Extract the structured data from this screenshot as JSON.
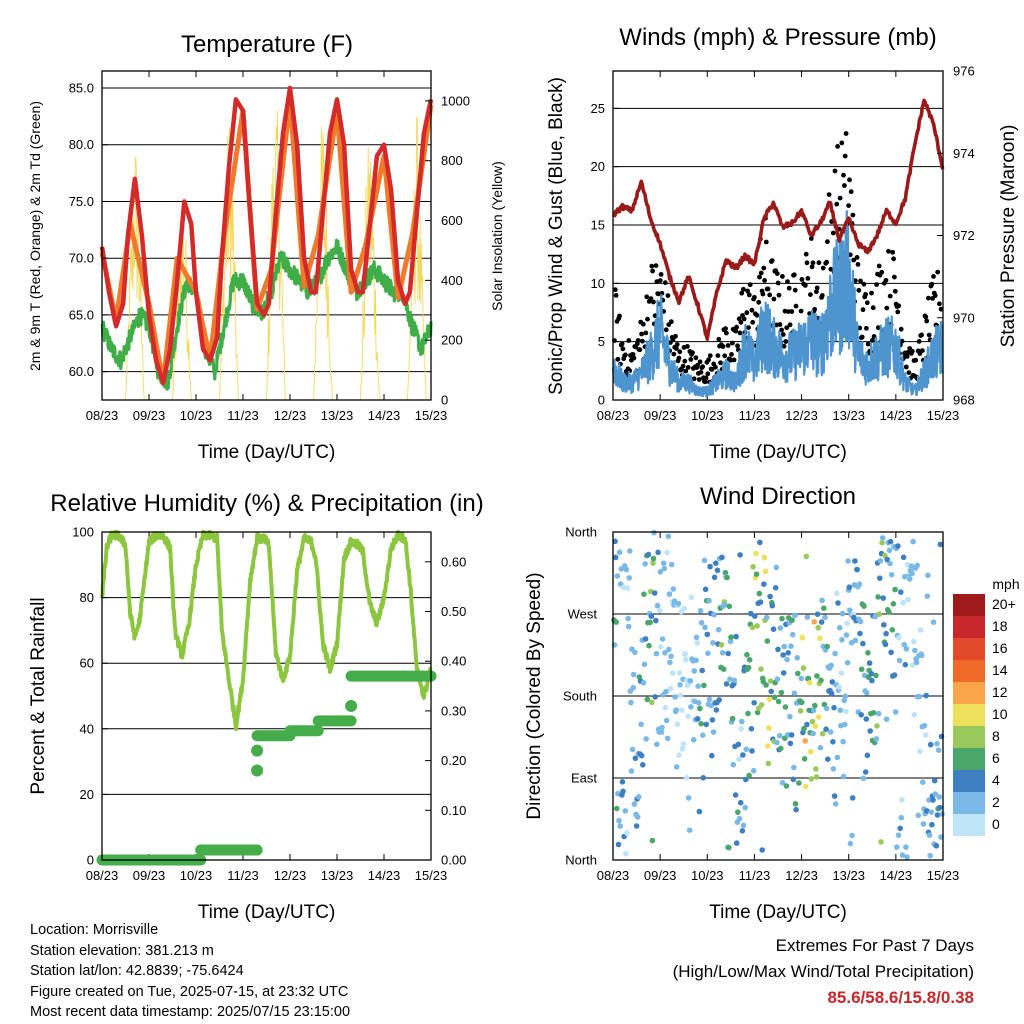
{
  "chart_data": [
    {
      "type": "line",
      "title": "Temperature (F)",
      "xlabel": "Time (Day/UTC)",
      "ylabel_left": "2m & 9m T (Red, Orange) & 2m Td (Green)",
      "ylabel_right": "Solar Insolation (Yellow)",
      "x_ticks": [
        "08/23",
        "09/23",
        "10/23",
        "11/23",
        "12/23",
        "13/23",
        "14/23",
        "15/23"
      ],
      "y_ticks_left": [
        "60.0",
        "65.0",
        "70.0",
        "75.0",
        "80.0",
        "85.0"
      ],
      "y_ticks_right": [
        "0",
        "200",
        "400",
        "600",
        "800",
        "1000"
      ],
      "ylim_left": [
        57.5,
        86.5
      ],
      "ylim_right": [
        0,
        1100
      ],
      "grid": true,
      "series": [
        {
          "name": "2m T",
          "color": "#d42a2a",
          "x": [
            0,
            0.15,
            0.3,
            0.45,
            0.55,
            0.7,
            0.85,
            1.0,
            1.15,
            1.3,
            1.45,
            1.6,
            1.75,
            1.9,
            2.0,
            2.15,
            2.3,
            2.45,
            2.55,
            2.7,
            2.85,
            3.0,
            3.15,
            3.3,
            3.45,
            3.55,
            3.7,
            3.85,
            4.0,
            4.15,
            4.3,
            4.45,
            4.55,
            4.7,
            4.85,
            5.0,
            5.15,
            5.3,
            5.45,
            5.55,
            5.7,
            5.85,
            6.0,
            6.15,
            6.3,
            6.45,
            6.55,
            6.7,
            6.85,
            7.0
          ],
          "values": [
            71,
            67,
            64,
            66,
            72,
            77,
            72,
            65,
            61,
            59,
            62,
            68,
            75,
            73,
            67,
            62,
            61,
            63,
            70,
            78,
            84,
            83,
            74,
            66,
            65,
            66,
            74,
            81,
            85,
            80,
            70,
            67,
            67,
            74,
            81,
            84,
            80,
            69,
            67,
            67,
            73,
            79,
            80,
            76,
            68,
            66,
            67,
            74,
            81,
            84
          ]
        },
        {
          "name": "9m T",
          "color": "#f07a2a",
          "x": [
            0,
            0.3,
            0.6,
            1.0,
            1.3,
            1.6,
            2.0,
            2.3,
            2.6,
            3.0,
            3.3,
            3.6,
            4.0,
            4.3,
            4.6,
            5.0,
            5.3,
            5.6,
            6.0,
            6.3,
            6.6,
            7.0
          ],
          "values": [
            70.5,
            64.5,
            73,
            66,
            59,
            70,
            67,
            61,
            72,
            83,
            65.5,
            69,
            84,
            67.5,
            72,
            83,
            67,
            71,
            79,
            66.5,
            72,
            83.5
          ]
        },
        {
          "name": "2m Td",
          "color": "#3fae49",
          "x": [
            0,
            0.2,
            0.4,
            0.6,
            0.8,
            1.0,
            1.2,
            1.4,
            1.6,
            1.8,
            2.0,
            2.2,
            2.4,
            2.6,
            2.8,
            3.0,
            3.2,
            3.4,
            3.6,
            3.8,
            4.0,
            4.2,
            4.4,
            4.6,
            4.8,
            5.0,
            5.2,
            5.4,
            5.6,
            5.8,
            6.0,
            6.2,
            6.4,
            6.6,
            6.8,
            7.0
          ],
          "values": [
            64,
            62,
            61,
            63,
            65,
            64,
            60,
            59,
            64,
            68,
            67,
            62,
            60,
            64,
            68,
            68,
            66,
            65,
            67,
            70,
            69,
            68,
            67,
            68,
            70,
            71,
            69,
            67,
            68,
            69,
            68,
            67,
            67,
            64,
            62,
            64
          ]
        },
        {
          "name": "Solar Insolation",
          "color": "#f5d85a",
          "axis": "right",
          "x": [
            0,
            0.5,
            0.62,
            0.7,
            0.78,
            0.9,
            1.5,
            1.62,
            1.7,
            1.78,
            1.9,
            2.5,
            2.62,
            2.7,
            2.78,
            2.9,
            3.5,
            3.62,
            3.7,
            3.78,
            3.9,
            4.5,
            4.62,
            4.7,
            4.78,
            4.9,
            5.5,
            5.62,
            5.7,
            5.78,
            5.9,
            6.5,
            6.62,
            6.7,
            6.78,
            6.9,
            7.0
          ],
          "values": [
            0,
            0,
            600,
            950,
            700,
            0,
            0,
            500,
            750,
            600,
            0,
            0,
            700,
            1000,
            800,
            0,
            0,
            850,
            1050,
            850,
            0,
            0,
            800,
            1020,
            700,
            0,
            0,
            750,
            950,
            650,
            0,
            0,
            700,
            1000,
            600,
            0,
            0
          ]
        }
      ]
    },
    {
      "type": "line",
      "title": "Winds (mph) & Pressure (mb)",
      "xlabel": "Time (Day/UTC)",
      "ylabel_left": "Sonic/Prop Wind & Gust (Blue, Black)",
      "ylabel_right": "Station Pressure (Maroon)",
      "x_ticks": [
        "08/23",
        "09/23",
        "10/23",
        "11/23",
        "12/23",
        "13/23",
        "14/23",
        "15/23"
      ],
      "y_ticks_left": [
        "0",
        "5",
        "10",
        "15",
        "20",
        "25"
      ],
      "y_ticks_right": [
        "968",
        "970",
        "972",
        "974",
        "976"
      ],
      "ylim_left": [
        0,
        28.2
      ],
      "ylim_right": [
        968,
        976
      ],
      "grid": true,
      "series": [
        {
          "name": "Wind",
          "color": "#4e94cf",
          "x": [
            0,
            0.2,
            0.4,
            0.6,
            0.8,
            1.0,
            1.2,
            1.4,
            1.6,
            1.8,
            2.0,
            2.2,
            2.4,
            2.6,
            2.8,
            3.0,
            3.2,
            3.4,
            3.6,
            3.8,
            4.0,
            4.2,
            4.4,
            4.6,
            4.8,
            5.0,
            5.2,
            5.4,
            5.6,
            5.8,
            6.0,
            6.2,
            6.4,
            6.6,
            6.8,
            7.0
          ],
          "values": [
            4,
            2,
            2,
            3,
            5,
            8,
            4,
            2,
            2,
            1,
            1,
            2,
            3,
            2,
            6,
            4,
            8,
            6,
            5,
            5,
            6,
            7,
            6,
            10,
            12,
            14,
            5,
            4,
            5,
            6,
            6,
            2,
            1,
            3,
            5,
            6
          ]
        },
        {
          "name": "Gust",
          "color": "#000000",
          "x": [
            0,
            0.2,
            0.4,
            0.6,
            0.8,
            1.0,
            1.2,
            1.4,
            1.6,
            1.8,
            2.0,
            2.2,
            2.4,
            2.6,
            2.8,
            3.0,
            3.2,
            3.4,
            3.6,
            3.8,
            4.0,
            4.2,
            4.4,
            4.6,
            4.8,
            5.0,
            5.2,
            5.4,
            5.6,
            5.8,
            6.0,
            6.2,
            6.4,
            6.6,
            6.8,
            7.0
          ],
          "values": [
            9,
            5,
            4,
            6,
            10,
            11,
            7,
            4,
            4,
            3,
            3,
            4,
            6,
            5,
            10,
            8,
            14,
            10,
            9,
            9,
            10,
            12,
            10,
            16,
            19,
            20,
            10,
            8,
            10,
            11,
            11,
            5,
            3,
            6,
            9,
            10
          ]
        },
        {
          "name": "Station Pressure",
          "color": "#9a1a1a",
          "axis": "right",
          "x": [
            0,
            0.2,
            0.4,
            0.6,
            0.8,
            1.0,
            1.2,
            1.4,
            1.6,
            1.8,
            2.0,
            2.2,
            2.4,
            2.6,
            2.8,
            3.0,
            3.2,
            3.4,
            3.6,
            3.8,
            4.0,
            4.2,
            4.4,
            4.6,
            4.8,
            5.0,
            5.2,
            5.4,
            5.6,
            5.8,
            6.0,
            6.2,
            6.4,
            6.6,
            6.8,
            7.0
          ],
          "values": [
            972.5,
            972.7,
            972.6,
            973.3,
            972.4,
            971.8,
            971.0,
            970.4,
            971.0,
            970.3,
            969.5,
            970.6,
            971.4,
            971.2,
            971.5,
            971.3,
            972.4,
            972.8,
            972.2,
            972.3,
            972.6,
            972.0,
            972.3,
            972.8,
            971.9,
            972.4,
            971.8,
            971.6,
            972.0,
            972.6,
            972.3,
            972.9,
            974.2,
            975.3,
            974.7,
            973.6
          ]
        }
      ]
    },
    {
      "type": "line",
      "title": "Relative Humidity (%) & Precipitation (in)",
      "xlabel": "Time (Day/UTC)",
      "ylabel": "Percent & Total Rainfall",
      "x_ticks": [
        "08/23",
        "09/23",
        "10/23",
        "11/23",
        "12/23",
        "13/23",
        "14/23",
        "15/23"
      ],
      "y_ticks_left": [
        "0",
        "20",
        "40",
        "60",
        "80",
        "100"
      ],
      "y_ticks_right": [
        "0.00",
        "0.10",
        "0.20",
        "0.30",
        "0.40",
        "0.50",
        "0.60"
      ],
      "ylim_left": [
        0,
        100
      ],
      "ylim_right": [
        0,
        0.66
      ],
      "grid": true,
      "series": [
        {
          "name": "Relative Humidity",
          "color": "#8cc63f",
          "x": [
            0,
            0.1,
            0.2,
            0.35,
            0.5,
            0.6,
            0.7,
            0.8,
            0.9,
            1.0,
            1.15,
            1.3,
            1.45,
            1.55,
            1.7,
            1.85,
            2.0,
            2.15,
            2.3,
            2.45,
            2.55,
            2.7,
            2.85,
            3.0,
            3.15,
            3.3,
            3.45,
            3.55,
            3.7,
            3.85,
            4.0,
            4.15,
            4.3,
            4.45,
            4.55,
            4.7,
            4.85,
            5.0,
            5.15,
            5.3,
            5.45,
            5.55,
            5.7,
            5.85,
            6.0,
            6.15,
            6.3,
            6.45,
            6.55,
            6.7,
            6.85,
            7.0
          ],
          "values": [
            80,
            95,
            99,
            99,
            96,
            75,
            68,
            73,
            85,
            97,
            99,
            99,
            95,
            70,
            62,
            72,
            90,
            99,
            99,
            98,
            70,
            55,
            41,
            55,
            85,
            98,
            98,
            96,
            63,
            55,
            62,
            88,
            98,
            97,
            92,
            66,
            58,
            66,
            92,
            97,
            96,
            94,
            78,
            72,
            80,
            95,
            99,
            98,
            85,
            58,
            50,
            58
          ]
        },
        {
          "name": "Total Precipitation",
          "color": "#44ac48",
          "axis": "right",
          "x": [
            0,
            2.1,
            2.1,
            3.3,
            3.3,
            4.0,
            4.0,
            4.6,
            4.6,
            5.3,
            5.3,
            7.0
          ],
          "values": [
            0.0,
            0.0,
            0.02,
            0.02,
            0.25,
            0.25,
            0.26,
            0.26,
            0.28,
            0.28,
            0.37,
            0.37
          ]
        }
      ]
    },
    {
      "type": "scatter",
      "title": "Wind Direction",
      "xlabel": "Time (Day/UTC)",
      "ylabel": "Direction (Colored By Speed)",
      "x_ticks": [
        "08/23",
        "09/23",
        "10/23",
        "11/23",
        "12/23",
        "13/23",
        "14/23",
        "15/23"
      ],
      "y_ticks": [
        "North",
        "East",
        "South",
        "West",
        "North"
      ],
      "ylim": [
        0,
        360
      ],
      "grid": true,
      "legend": {
        "title": "mph",
        "labels": [
          "20+",
          "18",
          "16",
          "14",
          "12",
          "10",
          "8",
          "6",
          "4",
          "2",
          "0"
        ],
        "colors": [
          "#9e1a1a",
          "#c8272b",
          "#e04a2a",
          "#f06b2a",
          "#f9a54a",
          "#eee05a",
          "#98c95a",
          "#4aa66a",
          "#3d7fc0",
          "#7ab8e6",
          "#bfe3f7"
        ],
        "position": "right"
      },
      "series": [
        {
          "name": "direction",
          "x": [
            0.1,
            0.3,
            0.5,
            0.8,
            1.0,
            1.2,
            1.5,
            1.7,
            1.9,
            2.1,
            2.4,
            2.7,
            2.9,
            3.1,
            3.3,
            3.5,
            3.7,
            3.9,
            4.1,
            4.3,
            4.5,
            4.7,
            4.9,
            5.1,
            5.3,
            5.5,
            5.7,
            5.9,
            6.1,
            6.3,
            6.5,
            6.7,
            6.9
          ],
          "values": [
            330,
            350,
            40,
            320,
            200,
            250,
            180,
            160,
            200,
            230,
            310,
            40,
            200,
            260,
            220,
            190,
            170,
            180,
            200,
            190,
            210,
            180,
            185,
            320,
            190,
            170,
            300,
            260,
            300,
            320,
            160,
            20,
            40
          ],
          "speeds": [
            6,
            2,
            4,
            8,
            2,
            3,
            1,
            2,
            6,
            4,
            8,
            4,
            7,
            10,
            9,
            6,
            6,
            5,
            12,
            13,
            6,
            4,
            2,
            4,
            5,
            6,
            8,
            6,
            4,
            2,
            2,
            4,
            6
          ]
        }
      ]
    }
  ],
  "info": {
    "location": "Location: Morrisville",
    "elevation": "Station elevation: 381.213 m",
    "latlon": "Station lat/lon: 42.8839; -75.6424",
    "created": "Figure created on Tue, 2025-07-15, at 23:32 UTC",
    "timestamp": "Most recent data timestamp: 2025/07/15 23:15:00"
  },
  "extremes": {
    "heading": "Extremes For Past 7 Days",
    "subheading": "(High/Low/Max Wind/Total Precipitation)",
    "values": "85.6/58.6/15.8/0.38"
  }
}
